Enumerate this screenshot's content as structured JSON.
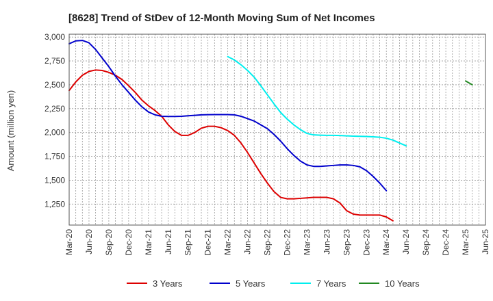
{
  "chart_data": {
    "type": "line",
    "title": "[8628]  Trend of StDev of 12-Month Moving Sum of Net Incomes",
    "xlabel": "",
    "ylabel": "Amount (million yen)",
    "ylim": [
      1030,
      3030
    ],
    "x_tick_labels": [
      "Mar-20",
      "Jun-20",
      "Sep-20",
      "Dec-20",
      "Mar-21",
      "Jun-21",
      "Sep-21",
      "Dec-21",
      "Mar-22",
      "Jun-22",
      "Sep-22",
      "Dec-22",
      "Mar-23",
      "Jun-23",
      "Sep-23",
      "Dec-23",
      "Mar-24",
      "Jun-24",
      "Sep-24",
      "Dec-24",
      "Mar-25",
      "Jun-25"
    ],
    "y_ticks": [
      1250,
      1500,
      1750,
      2000,
      2250,
      2500,
      2750,
      3000
    ],
    "y_tick_labels": [
      "1,250",
      "1,500",
      "1,750",
      "2,000",
      "2,250",
      "2,500",
      "2,750",
      "3,000"
    ],
    "grid": true,
    "legend_position": "bottom",
    "series": [
      {
        "name": "3 Years",
        "color": "#dd0000",
        "points": [
          [
            0,
            2440
          ],
          [
            1,
            2530
          ],
          [
            2,
            2600
          ],
          [
            3,
            2640
          ],
          [
            4,
            2655
          ],
          [
            5,
            2650
          ],
          [
            6,
            2630
          ],
          [
            7,
            2600
          ],
          [
            8,
            2555
          ],
          [
            9,
            2490
          ],
          [
            10,
            2420
          ],
          [
            11,
            2340
          ],
          [
            12,
            2280
          ],
          [
            13,
            2230
          ],
          [
            14,
            2170
          ],
          [
            15,
            2080
          ],
          [
            16,
            2010
          ],
          [
            17,
            1970
          ],
          [
            18,
            1970
          ],
          [
            19,
            2000
          ],
          [
            20,
            2045
          ],
          [
            21,
            2065
          ],
          [
            22,
            2065
          ],
          [
            23,
            2050
          ],
          [
            24,
            2020
          ],
          [
            25,
            1970
          ],
          [
            26,
            1890
          ],
          [
            27,
            1790
          ],
          [
            28,
            1680
          ],
          [
            29,
            1570
          ],
          [
            30,
            1470
          ],
          [
            31,
            1380
          ],
          [
            32,
            1320
          ],
          [
            33,
            1305
          ],
          [
            34,
            1305
          ],
          [
            35,
            1310
          ],
          [
            36,
            1315
          ],
          [
            37,
            1320
          ],
          [
            38,
            1320
          ],
          [
            39,
            1320
          ],
          [
            40,
            1305
          ],
          [
            41,
            1260
          ],
          [
            42,
            1180
          ],
          [
            43,
            1145
          ],
          [
            44,
            1135
          ],
          [
            45,
            1135
          ],
          [
            46,
            1135
          ],
          [
            47,
            1135
          ],
          [
            48,
            1115
          ],
          [
            49,
            1075
          ]
        ]
      },
      {
        "name": "5 Years",
        "color": "#0000cc",
        "points": [
          [
            0,
            2930
          ],
          [
            1,
            2960
          ],
          [
            2,
            2965
          ],
          [
            3,
            2940
          ],
          [
            4,
            2870
          ],
          [
            5,
            2780
          ],
          [
            6,
            2690
          ],
          [
            7,
            2590
          ],
          [
            8,
            2500
          ],
          [
            9,
            2420
          ],
          [
            10,
            2340
          ],
          [
            11,
            2270
          ],
          [
            12,
            2215
          ],
          [
            13,
            2185
          ],
          [
            14,
            2170
          ],
          [
            15,
            2168
          ],
          [
            16,
            2168
          ],
          [
            17,
            2170
          ],
          [
            18,
            2175
          ],
          [
            19,
            2180
          ],
          [
            20,
            2185
          ],
          [
            21,
            2187
          ],
          [
            22,
            2188
          ],
          [
            23,
            2188
          ],
          [
            24,
            2188
          ],
          [
            25,
            2185
          ],
          [
            26,
            2170
          ],
          [
            27,
            2145
          ],
          [
            28,
            2120
          ],
          [
            29,
            2080
          ],
          [
            30,
            2040
          ],
          [
            31,
            1980
          ],
          [
            32,
            1910
          ],
          [
            33,
            1830
          ],
          [
            34,
            1760
          ],
          [
            35,
            1700
          ],
          [
            36,
            1660
          ],
          [
            37,
            1645
          ],
          [
            38,
            1645
          ],
          [
            39,
            1650
          ],
          [
            40,
            1655
          ],
          [
            41,
            1660
          ],
          [
            42,
            1660
          ],
          [
            43,
            1655
          ],
          [
            44,
            1640
          ],
          [
            45,
            1600
          ],
          [
            46,
            1540
          ],
          [
            47,
            1470
          ],
          [
            48,
            1390
          ]
        ]
      },
      {
        "name": "7 Years",
        "color": "#00eeee",
        "points": [
          [
            24,
            2795
          ],
          [
            25,
            2760
          ],
          [
            26,
            2710
          ],
          [
            27,
            2650
          ],
          [
            28,
            2580
          ],
          [
            29,
            2490
          ],
          [
            30,
            2395
          ],
          [
            31,
            2300
          ],
          [
            32,
            2210
          ],
          [
            33,
            2140
          ],
          [
            34,
            2080
          ],
          [
            35,
            2030
          ],
          [
            36,
            1990
          ],
          [
            37,
            1975
          ],
          [
            38,
            1972
          ],
          [
            39,
            1970
          ],
          [
            40,
            1970
          ],
          [
            41,
            1968
          ],
          [
            42,
            1965
          ],
          [
            43,
            1962
          ],
          [
            44,
            1960
          ],
          [
            45,
            1958
          ],
          [
            46,
            1955
          ],
          [
            47,
            1950
          ],
          [
            48,
            1940
          ],
          [
            49,
            1920
          ],
          [
            50,
            1890
          ],
          [
            51,
            1860
          ]
        ]
      },
      {
        "name": "10 Years",
        "color": "#228822",
        "points": [
          [
            60,
            2540
          ],
          [
            61,
            2500
          ]
        ]
      }
    ]
  }
}
